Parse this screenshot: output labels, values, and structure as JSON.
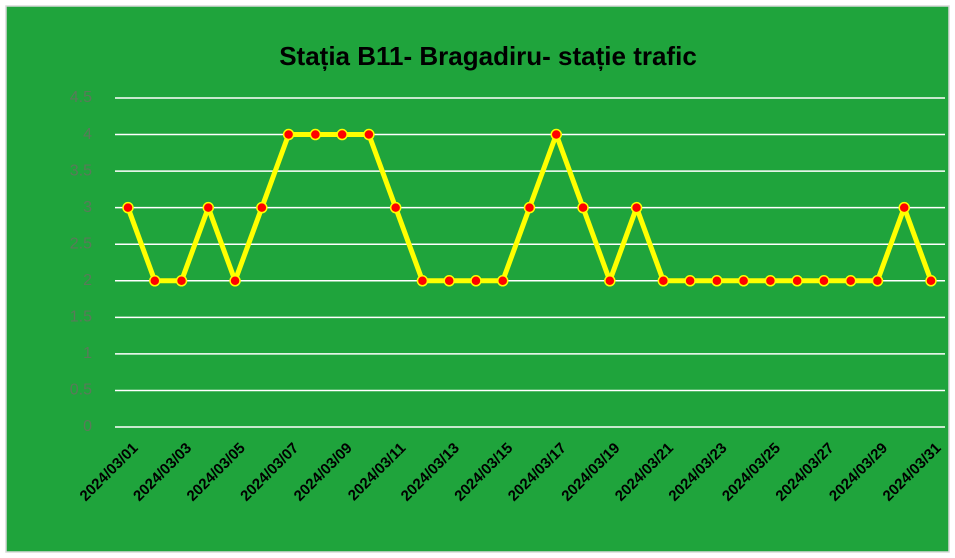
{
  "chart_data": {
    "type": "line",
    "title": "Stația B11- Bragadiru- stație trafic",
    "categories": [
      "2024/03/01",
      null,
      "2024/03/03",
      null,
      "2024/03/05",
      null,
      "2024/03/07",
      null,
      "2024/03/09",
      null,
      "2024/03/11",
      null,
      "2024/03/13",
      null,
      "2024/03/15",
      null,
      "2024/03/17",
      null,
      "2024/03/19",
      null,
      "2024/03/21",
      null,
      "2024/03/23",
      null,
      "2024/03/25",
      null,
      "2024/03/27",
      null,
      "2024/03/29",
      null,
      "2024/03/31"
    ],
    "series": [
      {
        "color": "#ffff00",
        "marker_color": "#ff0000",
        "values": [
          3,
          2,
          2,
          3,
          2,
          3,
          4,
          4,
          4,
          4,
          3,
          2,
          2,
          2,
          2,
          3,
          4,
          3,
          2,
          3,
          2,
          2,
          2,
          2,
          2,
          2,
          2,
          2,
          2,
          3,
          2
        ]
      }
    ],
    "ylim": [
      0,
      4.5
    ],
    "yticks": [
      0,
      0.5,
      1,
      1.5,
      2,
      2.5,
      3,
      3.5,
      4,
      4.5
    ],
    "grid": true
  }
}
